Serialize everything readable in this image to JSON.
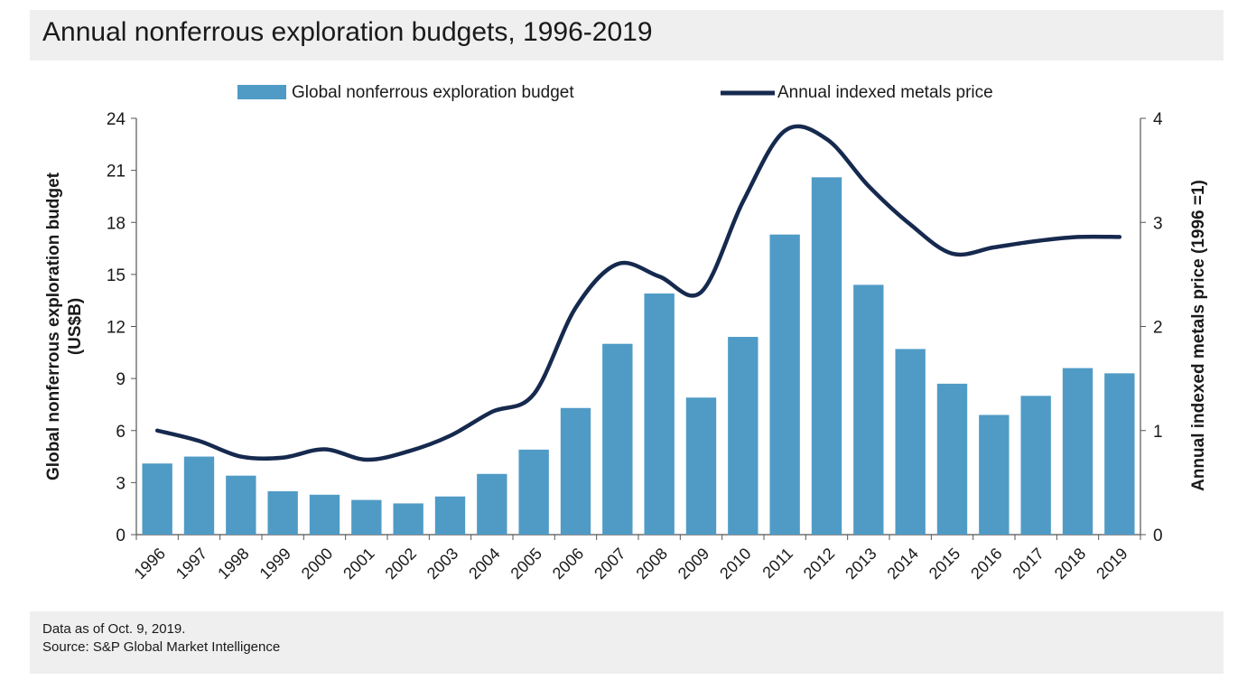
{
  "colors": {
    "bar": "#4f9bc6",
    "line": "#16294e",
    "axis": "#555555",
    "panel": "#efefef"
  },
  "chart_data": {
    "type": "bar",
    "title": "Annual nonferrous exploration budgets, 1996-2019",
    "categories": [
      "1996",
      "1997",
      "1998",
      "1999",
      "2000",
      "2001",
      "2002",
      "2003",
      "2004",
      "2005",
      "2006",
      "2007",
      "2008",
      "2009",
      "2010",
      "2011",
      "2012",
      "2013",
      "2014",
      "2015",
      "2016",
      "2017",
      "2018",
      "2019"
    ],
    "series": [
      {
        "name": "Global nonferrous exploration budget",
        "type": "bar",
        "axis": "left",
        "values": [
          4.1,
          4.5,
          3.4,
          2.5,
          2.3,
          2.0,
          1.8,
          2.2,
          3.5,
          4.9,
          7.3,
          11.0,
          13.9,
          7.9,
          11.4,
          17.3,
          20.6,
          14.4,
          10.7,
          8.7,
          6.9,
          8.0,
          9.6,
          9.3
        ]
      },
      {
        "name": "Annual indexed metals price",
        "type": "line",
        "axis": "right",
        "values": [
          1.0,
          0.9,
          0.75,
          0.74,
          0.82,
          0.72,
          0.8,
          0.95,
          1.18,
          1.35,
          2.18,
          2.6,
          2.48,
          2.33,
          3.2,
          3.88,
          3.8,
          3.35,
          2.98,
          2.7,
          2.76,
          2.82,
          2.86,
          2.86
        ]
      }
    ],
    "ylabel": "Global nonferrous exploration budget (US$B)",
    "y2label": "Annual indexed metals price (1996 =1)",
    "ylim": [
      0,
      24
    ],
    "y2lim": [
      0,
      4
    ],
    "yticks": [
      "0",
      "3",
      "6",
      "9",
      "12",
      "15",
      "18",
      "21",
      "24"
    ],
    "y2ticks": [
      "0",
      "1",
      "2",
      "3",
      "4"
    ],
    "legend_position": "top-center"
  },
  "footer": {
    "line1": "Data as of Oct. 9, 2019.",
    "line2": "Source: S&P Global Market Intelligence"
  }
}
